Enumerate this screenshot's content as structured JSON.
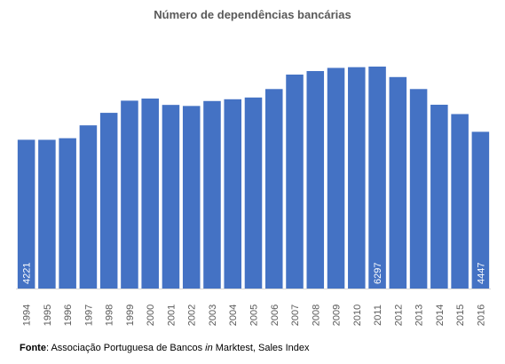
{
  "chart_data": {
    "type": "bar",
    "title": "Número de dependências bancárias",
    "categories": [
      "1994",
      "1995",
      "1996",
      "1997",
      "1998",
      "1999",
      "2000",
      "2001",
      "2002",
      "2003",
      "2004",
      "2005",
      "2006",
      "2007",
      "2008",
      "2009",
      "2010",
      "2011",
      "2012",
      "2013",
      "2014",
      "2015",
      "2016"
    ],
    "values": [
      4221,
      4220,
      4265,
      4630,
      4985,
      5330,
      5390,
      5210,
      5180,
      5320,
      5370,
      5420,
      5660,
      6070,
      6170,
      6260,
      6280,
      6297,
      6000,
      5660,
      5215,
      4950,
      4447
    ],
    "data_labels": [
      {
        "category": "1994",
        "text": "4221"
      },
      {
        "category": "2011",
        "text": "6297"
      },
      {
        "category": "2016",
        "text": "4447"
      }
    ],
    "ylim": [
      0,
      6297
    ],
    "xlabel": "",
    "ylabel": "",
    "grid": false,
    "legend": "none",
    "bar_color": "#4472C4"
  },
  "source": {
    "label": "Fonte",
    "pre": ": Associação Portuguesa de Bancos ",
    "italic": "in",
    "post": " Marktest, Sales Index"
  }
}
